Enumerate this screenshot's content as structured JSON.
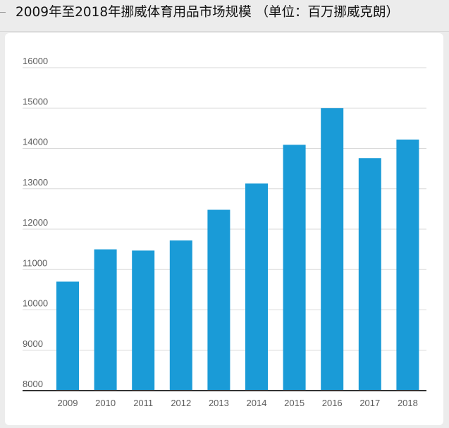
{
  "title": "2009年至2018年挪威体育用品市场规模 （单位：百万挪威克朗）",
  "colors": {
    "bar": "#1a9bd7",
    "grid": "#d9d9d9",
    "axis": "#333333",
    "tick_text": "#5c5c5c"
  },
  "chart_data": {
    "type": "bar",
    "title": "2009年至2018年挪威体育用品市场规模 （单位：百万挪威克朗）",
    "categories": [
      "2009",
      "2010",
      "2011",
      "2012",
      "2013",
      "2014",
      "2015",
      "2016",
      "2017",
      "2018"
    ],
    "values": [
      10700,
      11500,
      11470,
      11720,
      12480,
      13130,
      14090,
      15000,
      13760,
      14220
    ],
    "ylim": [
      8000,
      16000
    ],
    "yticks": [
      "8000",
      "9000",
      "10000",
      "11000",
      "12000",
      "13000",
      "14000",
      "15000",
      "16000"
    ],
    "xlabel": "",
    "ylabel": "",
    "grid": true,
    "legend": "none"
  }
}
